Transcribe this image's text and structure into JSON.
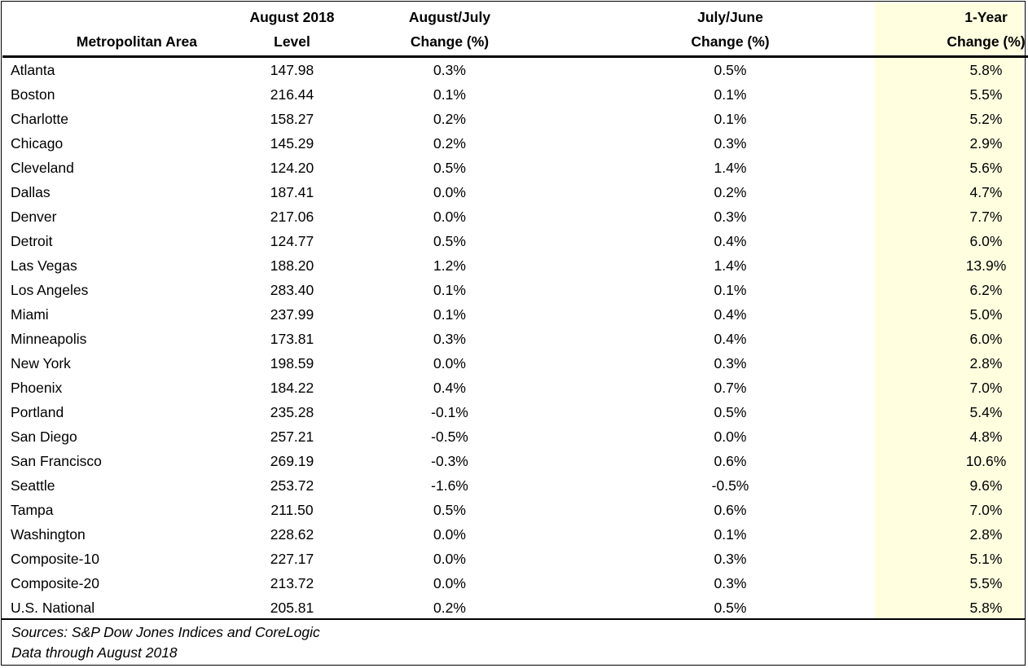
{
  "colors": {
    "highlight": "#ffffe0",
    "border": "#000000"
  },
  "header": {
    "area": "Metropolitan Area",
    "level": [
      "August 2018",
      "Level"
    ],
    "aug_jul": [
      "August/July",
      "Change (%)"
    ],
    "jul_jun": [
      "July/June",
      "Change (%)"
    ],
    "yoy": [
      "1-Year",
      "Change (%)"
    ]
  },
  "rows": [
    {
      "area": "Atlanta",
      "level": "147.98",
      "aug_jul": "0.3%",
      "jul_jun": "0.5%",
      "yoy": "5.8%"
    },
    {
      "area": "Boston",
      "level": "216.44",
      "aug_jul": "0.1%",
      "jul_jun": "0.1%",
      "yoy": "5.5%"
    },
    {
      "area": "Charlotte",
      "level": "158.27",
      "aug_jul": "0.2%",
      "jul_jun": "0.1%",
      "yoy": "5.2%"
    },
    {
      "area": "Chicago",
      "level": "145.29",
      "aug_jul": "0.2%",
      "jul_jun": "0.3%",
      "yoy": "2.9%"
    },
    {
      "area": "Cleveland",
      "level": "124.20",
      "aug_jul": "0.5%",
      "jul_jun": "1.4%",
      "yoy": "5.6%"
    },
    {
      "area": "Dallas",
      "level": "187.41",
      "aug_jul": "0.0%",
      "jul_jun": "0.2%",
      "yoy": "4.7%"
    },
    {
      "area": "Denver",
      "level": "217.06",
      "aug_jul": "0.0%",
      "jul_jun": "0.3%",
      "yoy": "7.7%"
    },
    {
      "area": "Detroit",
      "level": "124.77",
      "aug_jul": "0.5%",
      "jul_jun": "0.4%",
      "yoy": "6.0%"
    },
    {
      "area": "Las Vegas",
      "level": "188.20",
      "aug_jul": "1.2%",
      "jul_jun": "1.4%",
      "yoy": "13.9%"
    },
    {
      "area": "Los Angeles",
      "level": "283.40",
      "aug_jul": "0.1%",
      "jul_jun": "0.1%",
      "yoy": "6.2%"
    },
    {
      "area": "Miami",
      "level": "237.99",
      "aug_jul": "0.1%",
      "jul_jun": "0.4%",
      "yoy": "5.0%"
    },
    {
      "area": "Minneapolis",
      "level": "173.81",
      "aug_jul": "0.3%",
      "jul_jun": "0.4%",
      "yoy": "6.0%"
    },
    {
      "area": "New York",
      "level": "198.59",
      "aug_jul": "0.0%",
      "jul_jun": "0.3%",
      "yoy": "2.8%"
    },
    {
      "area": "Phoenix",
      "level": "184.22",
      "aug_jul": "0.4%",
      "jul_jun": "0.7%",
      "yoy": "7.0%"
    },
    {
      "area": "Portland",
      "level": "235.28",
      "aug_jul": "-0.1%",
      "jul_jun": "0.5%",
      "yoy": "5.4%"
    },
    {
      "area": "San Diego",
      "level": "257.21",
      "aug_jul": "-0.5%",
      "jul_jun": "0.0%",
      "yoy": "4.8%"
    },
    {
      "area": "San Francisco",
      "level": "269.19",
      "aug_jul": "-0.3%",
      "jul_jun": "0.6%",
      "yoy": "10.6%"
    },
    {
      "area": "Seattle",
      "level": "253.72",
      "aug_jul": "-1.6%",
      "jul_jun": "-0.5%",
      "yoy": "9.6%"
    },
    {
      "area": "Tampa",
      "level": "211.50",
      "aug_jul": "0.5%",
      "jul_jun": "0.6%",
      "yoy": "7.0%"
    },
    {
      "area": "Washington",
      "level": "228.62",
      "aug_jul": "0.0%",
      "jul_jun": "0.1%",
      "yoy": "2.8%"
    },
    {
      "area": "Composite-10",
      "level": "227.17",
      "aug_jul": "0.0%",
      "jul_jun": "0.3%",
      "yoy": "5.1%"
    },
    {
      "area": "Composite-20",
      "level": "213.72",
      "aug_jul": "0.0%",
      "jul_jun": "0.3%",
      "yoy": "5.5%"
    },
    {
      "area": "U.S. National",
      "level": "205.81",
      "aug_jul": "0.2%",
      "jul_jun": "0.5%",
      "yoy": "5.8%"
    }
  ],
  "footer": {
    "sources": "Sources: S&P Dow Jones Indices and CoreLogic",
    "through": "Data through August 2018"
  }
}
